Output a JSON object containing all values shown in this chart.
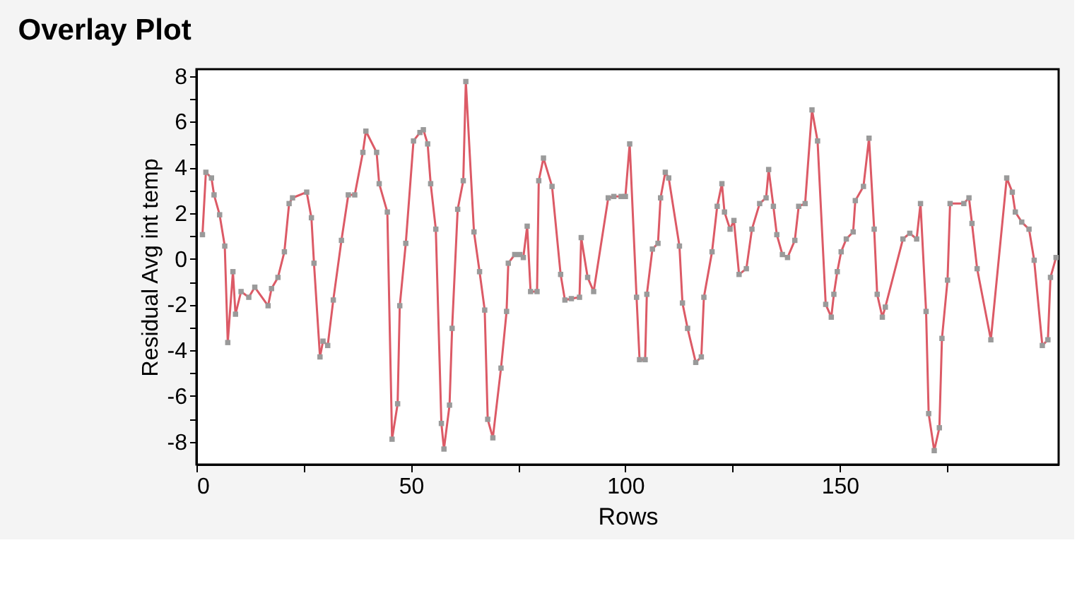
{
  "chart_data": {
    "type": "line",
    "title": "Overlay Plot",
    "xlabel": "Rows",
    "ylabel": "Residual Avg int temp",
    "xlim": [
      0,
      201
    ],
    "ylim": [
      -9,
      8.3
    ],
    "xticks": [
      0,
      {
        "value": 25,
        "label": null
      },
      50,
      {
        "value": 75,
        "label": null
      },
      100,
      {
        "value": 125,
        "label": null
      },
      150,
      {
        "value": 175,
        "label": null
      }
    ],
    "yticks": [
      -8,
      {
        "value": -7,
        "label": null
      },
      -6,
      {
        "value": -5,
        "label": null
      },
      -4,
      {
        "value": -3,
        "label": null
      },
      -2,
      {
        "value": -1,
        "label": null
      },
      0,
      {
        "value": 1,
        "label": null
      },
      2,
      {
        "value": 3,
        "label": null
      },
      4,
      {
        "value": 5,
        "label": null
      },
      6,
      {
        "value": 7,
        "label": null
      },
      8
    ],
    "grid": false,
    "marker": "square",
    "line_style": "solid",
    "series": [
      {
        "color": "#dc5a66",
        "x": [
          1.4,
          2.2,
          3.5,
          4.1,
          5.4,
          6.6,
          7.3,
          8.5,
          9.1,
          10.4,
          12.2,
          13.6,
          16.7,
          17.5,
          19.0,
          20.5,
          21.6,
          22.4,
          25.7,
          26.8,
          27.4,
          28.8,
          29.5,
          30.6,
          31.9,
          33.8,
          35.4,
          36.9,
          38.8,
          39.5,
          42.0,
          42.6,
          44.5,
          45.6,
          46.9,
          47.4,
          48.8,
          50.6,
          52.1,
          52.9,
          53.9,
          54.6,
          55.8,
          57.1,
          57.7,
          59.0,
          59.6,
          60.9,
          62.2,
          62.8,
          64.7,
          66.0,
          67.2,
          67.9,
          69.1,
          71.0,
          72.3,
          72.7,
          74.2,
          75.4,
          76.2,
          77.1,
          77.9,
          79.4,
          79.8,
          80.9,
          82.9,
          84.9,
          85.9,
          87.4,
          89.3,
          89.7,
          91.2,
          92.6,
          96.0,
          97.3,
          99.0,
          100.0,
          101.0,
          102.6,
          103.3,
          104.6,
          105.0,
          106.3,
          107.6,
          108.2,
          109.3,
          110.1,
          112.6,
          113.3,
          114.5,
          116.4,
          117.7,
          118.3,
          120.2,
          121.4,
          122.5,
          123.1,
          124.4,
          125.3,
          126.5,
          128.2,
          129.5,
          131.3,
          132.8,
          133.4,
          134.5,
          135.3,
          136.6,
          137.8,
          139.5,
          140.4,
          141.9,
          143.5,
          144.8,
          146.7,
          148.0,
          148.6,
          149.4,
          150.3,
          151.5,
          153.1,
          153.6,
          155.5,
          156.8,
          158.0,
          158.7,
          159.9,
          160.6,
          164.7,
          166.3,
          167.9,
          168.8,
          170.1,
          170.7,
          172.0,
          173.2,
          173.8,
          175.1,
          175.7,
          178.9,
          180.1,
          180.8,
          182.0,
          185.2,
          188.9,
          190.2,
          190.9,
          192.4,
          194.1,
          195.3,
          197.2,
          198.5,
          199.1,
          200.4
        ],
        "values": [
          1.06,
          3.79,
          3.54,
          2.8,
          1.93,
          0.56,
          -3.66,
          -0.56,
          -2.42,
          -1.43,
          -1.68,
          -1.24,
          -2.05,
          -1.3,
          -0.81,
          0.31,
          2.42,
          2.67,
          2.92,
          1.8,
          -0.19,
          -4.29,
          -3.6,
          -3.79,
          -1.8,
          0.81,
          2.8,
          2.8,
          4.66,
          5.59,
          4.66,
          3.29,
          2.05,
          -7.89,
          -6.34,
          -2.05,
          0.68,
          5.16,
          5.53,
          5.65,
          5.03,
          3.29,
          1.3,
          -7.2,
          -8.32,
          -6.4,
          -3.04,
          2.17,
          3.42,
          7.76,
          1.18,
          -0.56,
          -2.24,
          -7.02,
          -7.83,
          -4.78,
          -2.3,
          -0.19,
          0.19,
          0.19,
          0.06,
          1.43,
          -1.43,
          -1.43,
          3.42,
          4.41,
          3.17,
          -0.68,
          -1.8,
          -1.74,
          -1.68,
          0.93,
          -0.81,
          -1.43,
          2.67,
          2.73,
          2.73,
          2.73,
          5.03,
          -1.68,
          -4.41,
          -4.41,
          -1.55,
          0.43,
          0.68,
          2.67,
          3.79,
          3.54,
          0.56,
          -1.93,
          -3.04,
          -4.53,
          -4.29,
          -1.68,
          0.31,
          2.3,
          3.29,
          2.05,
          1.3,
          1.68,
          -0.68,
          -0.43,
          1.3,
          2.42,
          2.67,
          3.91,
          2.3,
          1.06,
          0.19,
          0.06,
          0.81,
          2.3,
          2.42,
          6.52,
          5.16,
          -1.99,
          -2.55,
          -1.55,
          -0.56,
          0.31,
          0.87,
          1.18,
          2.55,
          3.17,
          5.28,
          1.3,
          -1.55,
          -2.55,
          -2.11,
          0.87,
          1.12,
          0.87,
          2.42,
          -2.3,
          -6.77,
          -8.39,
          -7.39,
          -3.48,
          -0.93,
          2.42,
          2.42,
          2.67,
          1.55,
          -0.43,
          -3.54,
          3.54,
          2.92,
          2.05,
          1.61,
          1.3,
          -0.06,
          -3.79,
          -3.54,
          -0.81,
          0.06
        ]
      }
    ]
  }
}
